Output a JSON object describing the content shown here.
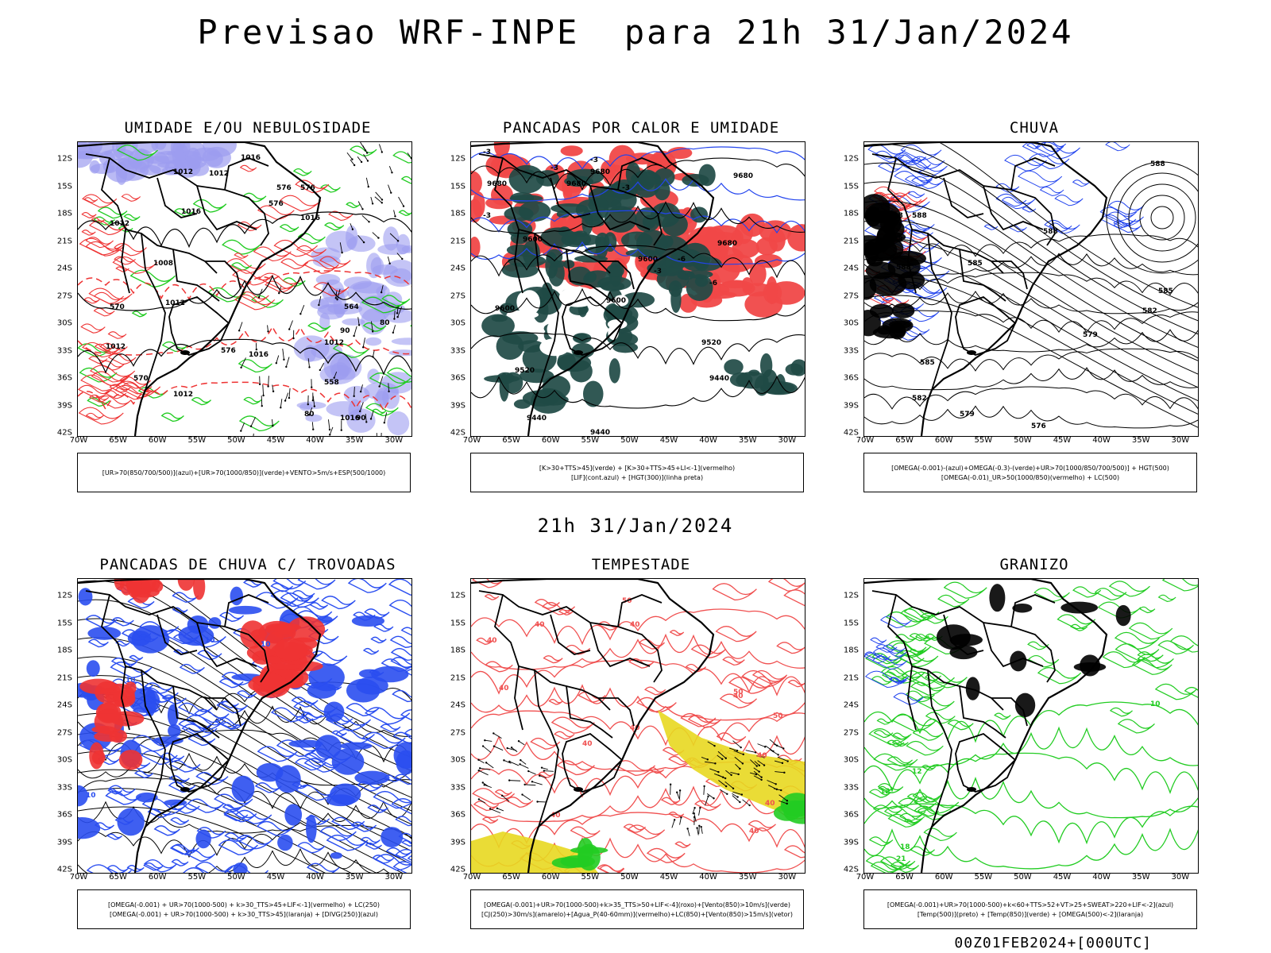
{
  "title": "Previsao WRF-INPE  para 21h 31/Jan/2024",
  "subtitle": "21h 31/Jan/2024",
  "footer": "00Z01FEB2024+[000UTC]",
  "axes": {
    "lat_labels": [
      "12S",
      "15S",
      "18S",
      "21S",
      "24S",
      "27S",
      "30S",
      "33S",
      "36S",
      "39S",
      "42S"
    ],
    "lon_labels": [
      "70W",
      "65W",
      "60W",
      "55W",
      "50W",
      "45W",
      "40W",
      "35W",
      "30W"
    ]
  },
  "panels": [
    {
      "id": "umidade",
      "title": "UMIDADE E/OU NEBULOSIDADE",
      "legend": [
        "[UR>70(850/700/500)](azul)+[UR>70(1000/850)](verde)+VENTO>5m/s+ESP(500/1000)"
      ],
      "contour_labels": [
        "1012",
        "1012",
        "1016",
        "1012",
        "1016",
        "1016",
        "1008",
        "1012",
        "1012",
        "1016",
        "1012",
        "1016",
        "1012",
        "576",
        "576",
        "576",
        "576",
        "570",
        "570",
        "564",
        "558",
        "80",
        "80",
        "90",
        "90"
      ]
    },
    {
      "id": "pancadas-calor",
      "title": "PANCADAS POR CALOR E UMIDADE",
      "legend": [
        "[K>30+TTS>45](verde) + [K>30+TTS>45+LI<-1](vermelho)",
        "[LIF](cont.azul) + [HGT(300)](linha preta)"
      ],
      "contour_labels": [
        "9680",
        "9680",
        "9680",
        "9680",
        "9680",
        "9600",
        "9600",
        "9600",
        "9600",
        "9520",
        "9520",
        "9440",
        "9440",
        "9440",
        "-3",
        "-3",
        "-3",
        "-3",
        "-3",
        "-6",
        "-6",
        "-3"
      ]
    },
    {
      "id": "chuva",
      "title": "CHUVA",
      "legend": [
        "[OMEGA(-0.001)-(azul)+OMEGA(-0.3)-(verde)+UR>70(1000/850/700/500)] + HGT(500)",
        "[OMEGA(-0.01)_UR>50(1000/850)(vermelho) + LC(500)"
      ],
      "contour_labels": [
        "588",
        "588",
        "588",
        "588",
        "588",
        "585",
        "585",
        "585",
        "582",
        "582",
        "579",
        "579",
        "576",
        "588"
      ]
    },
    {
      "id": "pancadas-trovoadas",
      "title": "PANCADAS DE CHUVA C/ TROVOADAS",
      "legend": [
        "[OMEGA(-0.001) + UR>70(1000-500) + k>30_TTS>45+LIF<-1](vermelho) + LC(250)",
        "[OMEGA(-0.001) + UR>70(1000-500) + k>30_TTS>45](laranja) + [DIVG(250)](azul)"
      ],
      "contour_labels": [
        "10",
        "10",
        "10",
        "10"
      ]
    },
    {
      "id": "tempestade",
      "title": "TEMPESTADE",
      "legend": [
        "[OMEGA(-0.001)+UR>70(1000-500)+k>35_TTS>50+LIF<-4](roxo)+[Vento(850)>10m/s](verde)",
        "[CJ(250)>30m/s](amarelo)+[Agua_P(40-60mm)](vermelho)+LC(850)+[Vento(850)>15m/s](vetor)"
      ],
      "contour_labels": [
        "40",
        "40",
        "40",
        "40",
        "50",
        "50",
        "50",
        "40",
        "40",
        "40",
        "40",
        "40",
        "40",
        "40"
      ]
    },
    {
      "id": "granizo",
      "title": "GRANIZO",
      "legend": [
        "[OMEGA(-0.001)+UR>70(1000-500)+k<60+TTS>52+VT>25+SWEAT>220+LIF<-2](azul)",
        "[Temp(500)](preto) + [Temp(850)](verde) + [OMEGA(500)<-2](laranja)"
      ],
      "contour_labels": [
        "12",
        "12",
        "10",
        "18",
        "21"
      ]
    }
  ]
}
